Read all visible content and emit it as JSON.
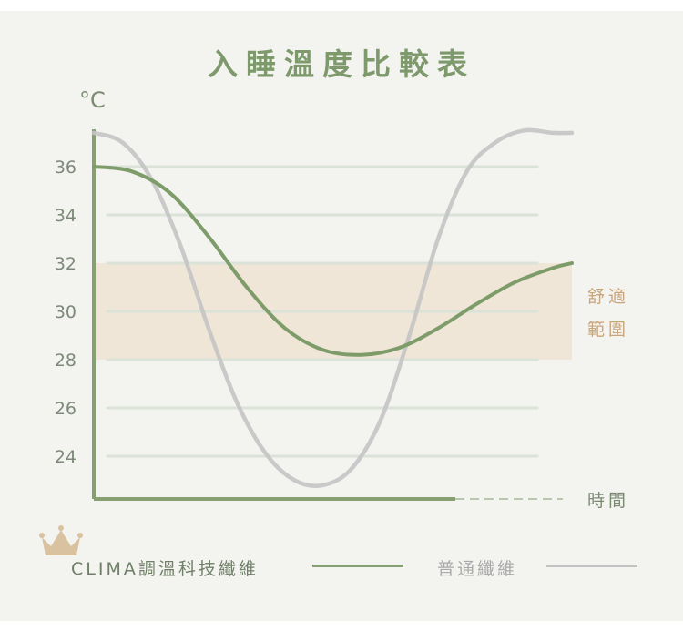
{
  "title": "入睡溫度比較表",
  "unit": "°C",
  "chart_data": {
    "type": "line",
    "title": "入睡溫度比較表",
    "ylabel": "°C",
    "xlabel": "時間",
    "ylim": [
      22,
      37.6
    ],
    "xlim": [
      0,
      100
    ],
    "yticks": [
      36,
      34,
      32,
      30,
      28,
      26,
      24
    ],
    "grid": true,
    "comfort_band": {
      "label": "舒適範圍",
      "label_lines": [
        "舒適",
        "範圍"
      ],
      "range": [
        28,
        32
      ]
    },
    "series": [
      {
        "name": "CLIMA調溫科技纖維",
        "color": "#7e9c6a",
        "x": [
          0,
          8,
          16,
          24,
          32,
          40,
          48,
          56,
          64,
          72,
          80,
          88,
          96,
          100
        ],
        "y": [
          36,
          35.8,
          34.9,
          33.1,
          31.0,
          29.3,
          28.4,
          28.2,
          28.5,
          29.3,
          30.3,
          31.2,
          31.8,
          32.0
        ]
      },
      {
        "name": "普通纖維",
        "color": "#c4c4c4",
        "x": [
          0,
          6,
          12,
          18,
          24,
          30,
          36,
          42,
          48,
          54,
          60,
          66,
          72,
          78,
          84,
          90,
          96,
          100
        ],
        "y": [
          37.4,
          37.0,
          35.5,
          32.8,
          29.3,
          26.2,
          24.1,
          23.0,
          22.8,
          23.5,
          25.5,
          29.0,
          33.0,
          35.8,
          37.0,
          37.5,
          37.4,
          37.4
        ]
      }
    ]
  },
  "legend": {
    "items": [
      {
        "label": "CLIMA調溫科技纖維",
        "color": "#7e9c6a"
      },
      {
        "label": "普通纖維",
        "color": "#c4c4c4"
      }
    ]
  }
}
